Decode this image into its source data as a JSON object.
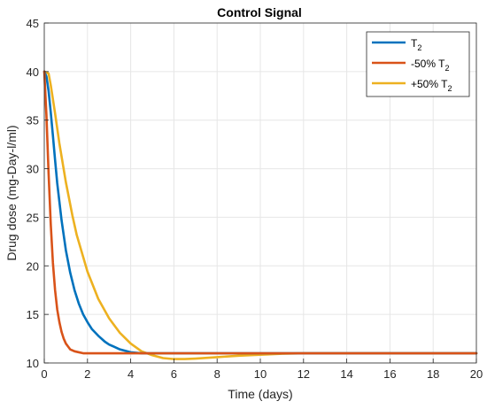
{
  "chart_data": {
    "type": "line",
    "title": "Control Signal",
    "xlabel": "Time (days)",
    "ylabel": "Drug dose (mg-Day-l/ml)",
    "xlim": [
      0,
      20
    ],
    "ylim": [
      10,
      45
    ],
    "xticks": [
      0,
      2,
      4,
      6,
      8,
      10,
      12,
      14,
      16,
      18,
      20
    ],
    "yticks": [
      10,
      15,
      20,
      25,
      30,
      35,
      40,
      45
    ],
    "grid": true,
    "legend_position": "top-right",
    "series": [
      {
        "name": "T",
        "subscript": "2",
        "color": "#0072BD",
        "x": [
          0,
          0.1,
          0.2,
          0.3,
          0.4,
          0.5,
          0.6,
          0.8,
          1.0,
          1.2,
          1.4,
          1.6,
          1.8,
          2.0,
          2.2,
          2.5,
          2.8,
          3.0,
          3.5,
          4.0,
          4.5,
          5.0,
          5.5,
          6.0,
          7.0,
          8.0,
          10.0,
          12.0,
          15.0,
          20.0
        ],
        "y": [
          40.0,
          39.5,
          38.0,
          35.8,
          33.4,
          30.9,
          28.5,
          24.7,
          21.6,
          19.3,
          17.5,
          16.1,
          15.0,
          14.2,
          13.5,
          12.8,
          12.2,
          11.9,
          11.4,
          11.1,
          11.0,
          11.0,
          11.0,
          11.0,
          11.0,
          11.0,
          11.0,
          11.0,
          11.0,
          11.0
        ]
      },
      {
        "name": "-50% T",
        "subscript": "2",
        "color": "#D95319",
        "x": [
          0,
          0.1,
          0.2,
          0.3,
          0.4,
          0.5,
          0.6,
          0.7,
          0.8,
          0.9,
          1.0,
          1.1,
          1.2,
          1.4,
          1.6,
          1.8,
          2.0,
          2.5,
          3.0,
          4.0,
          6.0,
          8.0,
          12.0,
          20.0
        ],
        "y": [
          40.0,
          35.5,
          29.5,
          24.3,
          20.3,
          17.5,
          15.5,
          14.2,
          13.2,
          12.5,
          12.0,
          11.7,
          11.4,
          11.2,
          11.1,
          11.0,
          11.0,
          11.0,
          11.0,
          11.0,
          11.0,
          11.0,
          11.0,
          11.0
        ]
      },
      {
        "name": "+50% T",
        "subscript": "2",
        "color": "#EDB120",
        "x": [
          0,
          0.2,
          0.3,
          0.5,
          0.7,
          1.0,
          1.3,
          1.5,
          2.0,
          2.5,
          3.0,
          3.5,
          4.0,
          4.5,
          5.0,
          5.5,
          6.0,
          6.5,
          7.0,
          8.0,
          9.0,
          10.0,
          11.0,
          12.0,
          14.0,
          16.0,
          20.0
        ],
        "y": [
          40.0,
          39.8,
          38.6,
          35.7,
          32.6,
          28.6,
          25.2,
          23.2,
          19.4,
          16.6,
          14.6,
          13.1,
          12.0,
          11.2,
          10.8,
          10.5,
          10.4,
          10.4,
          10.45,
          10.6,
          10.75,
          10.85,
          10.95,
          11.0,
          11.0,
          11.0,
          11.0
        ]
      }
    ]
  }
}
